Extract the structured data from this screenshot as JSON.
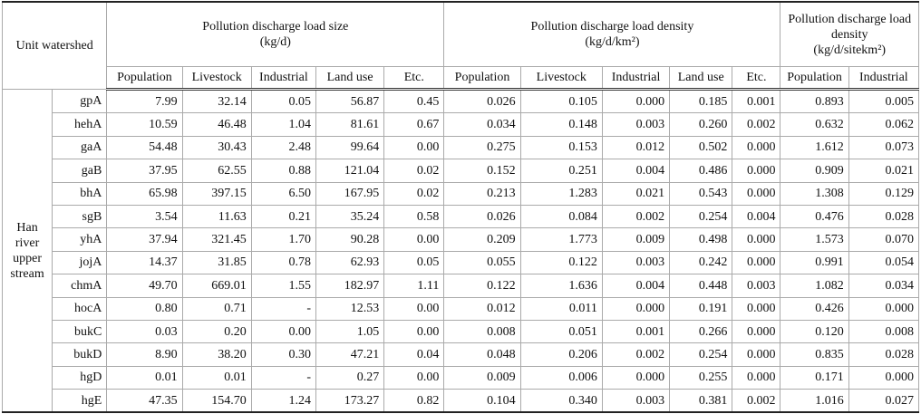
{
  "table": {
    "corner": "Unit watershed",
    "groups": [
      {
        "title": "Pollution discharge load size",
        "unit": "(kg/d)",
        "columns": [
          "Population",
          "Livestock",
          "Industrial",
          "Land use",
          "Etc."
        ]
      },
      {
        "title": "Pollution discharge load density",
        "unit": "(kg/d/km²)",
        "columns": [
          "Population",
          "Livestock",
          "Industrial",
          "Land use",
          "Etc."
        ]
      },
      {
        "title": "Pollution discharge load density",
        "unit": "(kg/d/sitekm²)",
        "columns": [
          "Population",
          "Industrial"
        ]
      }
    ],
    "region": "Han river upper stream",
    "rows": [
      {
        "name": "gpA",
        "cells": [
          "7.99",
          "32.14",
          "0.05",
          "56.87",
          "0.45",
          "0.026",
          "0.105",
          "0.000",
          "0.185",
          "0.001",
          "0.893",
          "0.005"
        ]
      },
      {
        "name": "hehA",
        "cells": [
          "10.59",
          "46.48",
          "1.04",
          "81.61",
          "0.67",
          "0.034",
          "0.148",
          "0.003",
          "0.260",
          "0.002",
          "0.632",
          "0.062"
        ]
      },
      {
        "name": "gaA",
        "cells": [
          "54.48",
          "30.43",
          "2.48",
          "99.64",
          "0.00",
          "0.275",
          "0.153",
          "0.012",
          "0.502",
          "0.000",
          "1.612",
          "0.073"
        ]
      },
      {
        "name": "gaB",
        "cells": [
          "37.95",
          "62.55",
          "0.88",
          "121.04",
          "0.02",
          "0.152",
          "0.251",
          "0.004",
          "0.486",
          "0.000",
          "0.909",
          "0.021"
        ]
      },
      {
        "name": "bhA",
        "cells": [
          "65.98",
          "397.15",
          "6.50",
          "167.95",
          "0.02",
          "0.213",
          "1.283",
          "0.021",
          "0.543",
          "0.000",
          "1.308",
          "0.129"
        ]
      },
      {
        "name": "sgB",
        "cells": [
          "3.54",
          "11.63",
          "0.21",
          "35.24",
          "0.58",
          "0.026",
          "0.084",
          "0.002",
          "0.254",
          "0.004",
          "0.476",
          "0.028"
        ]
      },
      {
        "name": "yhA",
        "cells": [
          "37.94",
          "321.45",
          "1.70",
          "90.28",
          "0.00",
          "0.209",
          "1.773",
          "0.009",
          "0.498",
          "0.000",
          "1.573",
          "0.070"
        ]
      },
      {
        "name": "jojA",
        "cells": [
          "14.37",
          "31.85",
          "0.78",
          "62.93",
          "0.05",
          "0.055",
          "0.122",
          "0.003",
          "0.242",
          "0.000",
          "0.991",
          "0.054"
        ]
      },
      {
        "name": "chmA",
        "cells": [
          "49.70",
          "669.01",
          "1.55",
          "182.97",
          "1.11",
          "0.122",
          "1.636",
          "0.004",
          "0.448",
          "0.003",
          "1.082",
          "0.034"
        ]
      },
      {
        "name": "hocA",
        "cells": [
          "0.80",
          "0.71",
          "-",
          "12.53",
          "0.00",
          "0.012",
          "0.011",
          "0.000",
          "0.191",
          "0.000",
          "0.426",
          "0.000"
        ]
      },
      {
        "name": "bukC",
        "cells": [
          "0.03",
          "0.20",
          "0.00",
          "1.05",
          "0.00",
          "0.008",
          "0.051",
          "0.001",
          "0.266",
          "0.000",
          "0.120",
          "0.008"
        ]
      },
      {
        "name": "bukD",
        "cells": [
          "8.90",
          "38.20",
          "0.30",
          "47.21",
          "0.04",
          "0.048",
          "0.206",
          "0.002",
          "0.254",
          "0.000",
          "0.835",
          "0.028"
        ]
      },
      {
        "name": "hgD",
        "cells": [
          "0.01",
          "0.01",
          "-",
          "0.27",
          "0.00",
          "0.009",
          "0.006",
          "0.000",
          "0.255",
          "0.000",
          "0.171",
          "0.000"
        ]
      },
      {
        "name": "hgE",
        "cells": [
          "47.35",
          "154.70",
          "1.24",
          "173.27",
          "0.82",
          "0.104",
          "0.340",
          "0.003",
          "0.381",
          "0.002",
          "1.016",
          "0.027"
        ]
      }
    ]
  }
}
